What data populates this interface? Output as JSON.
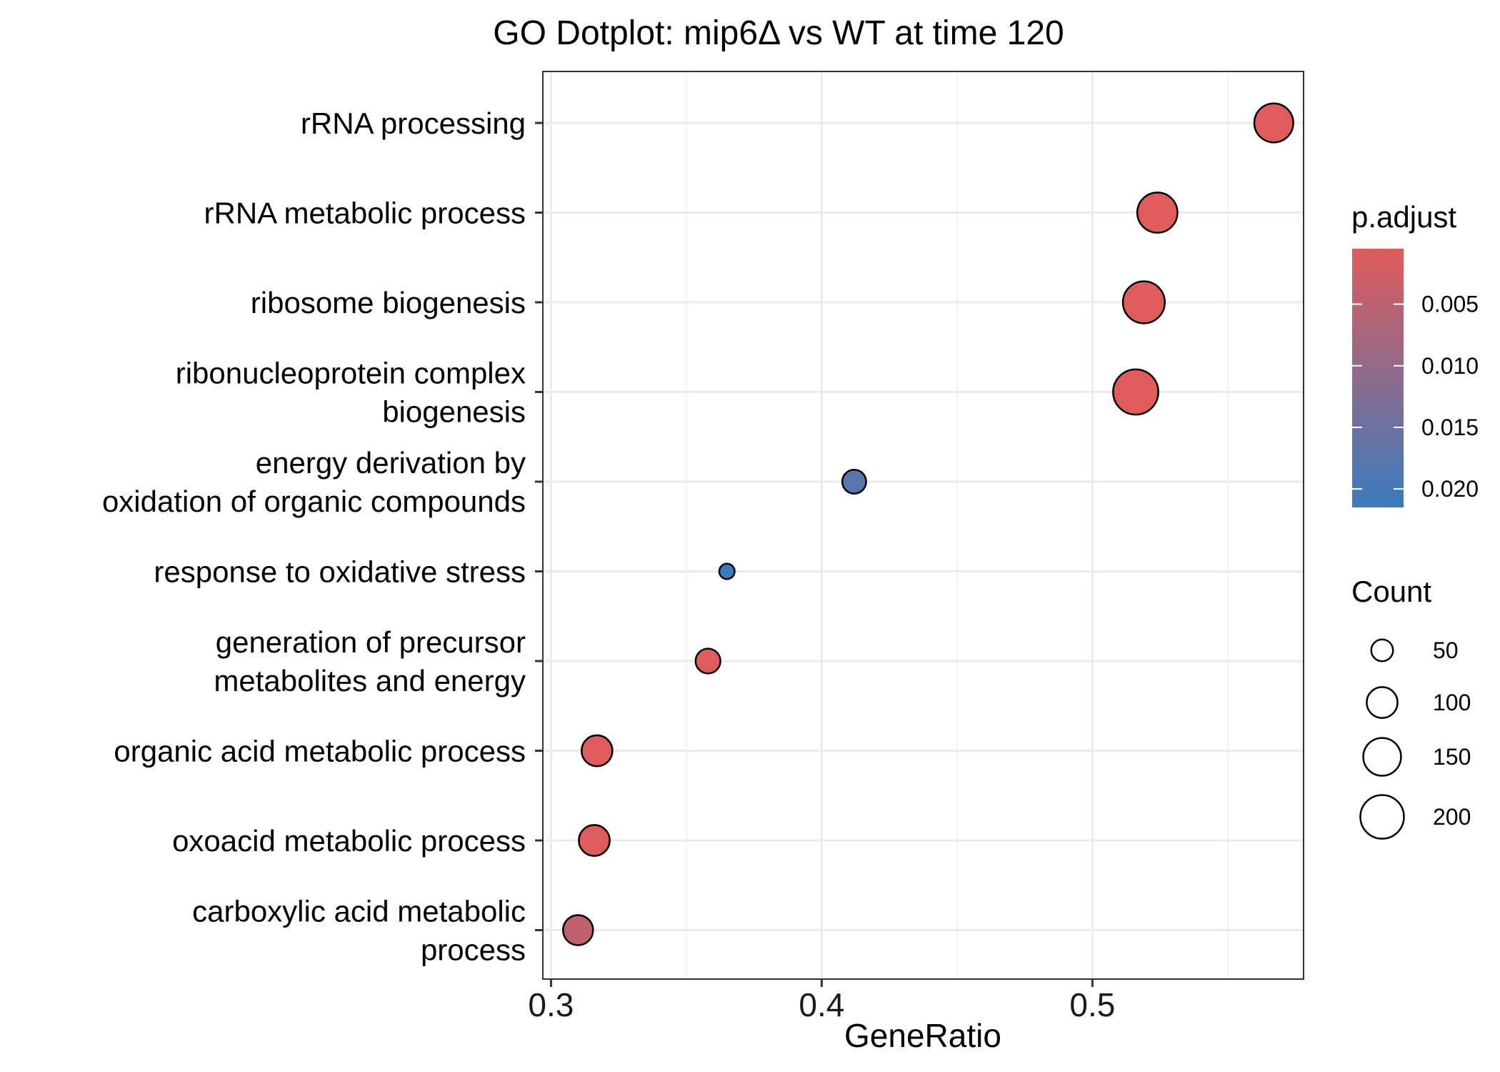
{
  "chart_data": {
    "type": "scatter",
    "title": "GO Dotplot: mip6Δ vs WT at time 120",
    "xlabel": "GeneRatio",
    "ylabel": "",
    "xlim": [
      0.297,
      0.578
    ],
    "xticks": [
      0.3,
      0.4,
      0.5
    ],
    "xtick_labels": [
      "0.3",
      "0.4",
      "0.5"
    ],
    "grid": true,
    "legend_position": "right",
    "categories": [
      "rRNA processing",
      "rRNA metabolic process",
      "ribosome biogenesis",
      "ribonucleoprotein complex biogenesis",
      "energy derivation by oxidation of organic compounds",
      "response to oxidative stress",
      "generation of precursor metabolites and energy",
      "organic acid metabolic process",
      "oxoacid metabolic process",
      "carboxylic acid metabolic process"
    ],
    "category_lines": [
      [
        "rRNA processing"
      ],
      [
        "rRNA metabolic process"
      ],
      [
        "ribosome biogenesis"
      ],
      [
        "ribonucleoprotein complex",
        "biogenesis"
      ],
      [
        "energy derivation by",
        "oxidation of organic compounds"
      ],
      [
        "response to oxidative stress"
      ],
      [
        "generation of precursor",
        "metabolites and energy"
      ],
      [
        "organic acid metabolic process"
      ],
      [
        "oxoacid metabolic process"
      ],
      [
        "carboxylic acid metabolic",
        "process"
      ]
    ],
    "points": [
      {
        "term": "rRNA processing",
        "gene_ratio": 0.567,
        "count": 160,
        "p_adjust": 0.0005
      },
      {
        "term": "rRNA metabolic process",
        "gene_ratio": 0.524,
        "count": 170,
        "p_adjust": 0.0005
      },
      {
        "term": "ribosome biogenesis",
        "gene_ratio": 0.519,
        "count": 185,
        "p_adjust": 0.0005
      },
      {
        "term": "ribonucleoprotein complex biogenesis",
        "gene_ratio": 0.516,
        "count": 215,
        "p_adjust": 0.0005
      },
      {
        "term": "energy derivation by oxidation of organic compounds",
        "gene_ratio": 0.412,
        "count": 60,
        "p_adjust": 0.0175
      },
      {
        "term": "response to oxidative stress",
        "gene_ratio": 0.365,
        "count": 25,
        "p_adjust": 0.0215
      },
      {
        "term": "generation of precursor metabolites and energy",
        "gene_ratio": 0.358,
        "count": 65,
        "p_adjust": 0.0005
      },
      {
        "term": "organic acid metabolic process",
        "gene_ratio": 0.317,
        "count": 100,
        "p_adjust": 0.0005
      },
      {
        "term": "oxoacid metabolic process",
        "gene_ratio": 0.316,
        "count": 100,
        "p_adjust": 0.0005
      },
      {
        "term": "carboxylic acid metabolic process",
        "gene_ratio": 0.31,
        "count": 95,
        "p_adjust": 0.0045
      }
    ],
    "color_legend": {
      "title": "p.adjust",
      "min": 0.0005,
      "max": 0.0215,
      "low_color": "#e05b5b",
      "high_color": "#3a7bbf",
      "ticks": [
        0.005,
        0.01,
        0.015,
        0.02
      ],
      "tick_labels": [
        "0.005",
        "0.010",
        "0.015",
        "0.020"
      ]
    },
    "size_legend": {
      "title": "Count",
      "values": [
        50,
        100,
        150,
        200
      ],
      "labels": [
        "50",
        "100",
        "150",
        "200"
      ]
    }
  }
}
